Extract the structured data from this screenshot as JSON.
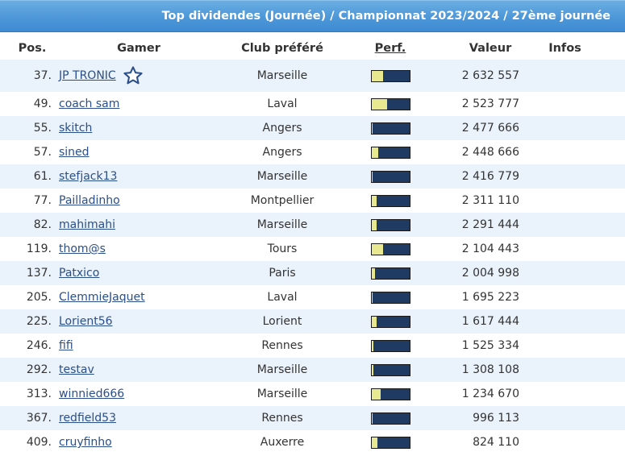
{
  "title": "Top dividendes (Journée) / Championnat 2023/2024 / 27ème journée",
  "headers": {
    "pos": "Pos.",
    "gamer": "Gamer",
    "club": "Club préféré",
    "perf": "Perf.",
    "value": "Valeur",
    "infos": "Infos"
  },
  "colors": {
    "header_bar": "#4d97d8",
    "row_alt": "#eaf2fb",
    "bar_bg": "#1f3a63",
    "bar_fill": "#e8e890",
    "link": "#2a4f8a"
  },
  "rows": [
    {
      "pos": "37.",
      "gamer": "JP TRONIC",
      "club": "Marseille",
      "perf": 0.3,
      "value": "2 632 557",
      "favorite_icon": "star-icon"
    },
    {
      "pos": "49.",
      "gamer": "coach sam",
      "club": "Laval",
      "perf": 0.42,
      "value": "2 523 777"
    },
    {
      "pos": "55.",
      "gamer": "skitch",
      "club": "Angers",
      "perf": 0.04,
      "value": "2 477 666"
    },
    {
      "pos": "57.",
      "gamer": "sined",
      "club": "Angers",
      "perf": 0.18,
      "value": "2 448 666"
    },
    {
      "pos": "61.",
      "gamer": "stefjack13",
      "club": "Marseille",
      "perf": 0.04,
      "value": "2 416 779"
    },
    {
      "pos": "77.",
      "gamer": "Pailladinho",
      "club": "Montpellier",
      "perf": 0.13,
      "value": "2 311 110"
    },
    {
      "pos": "82.",
      "gamer": "mahimahi",
      "club": "Marseille",
      "perf": 0.13,
      "value": "2 291 444"
    },
    {
      "pos": "119.",
      "gamer": "thom@s",
      "club": "Tours",
      "perf": 0.3,
      "value": "2 104 443"
    },
    {
      "pos": "137.",
      "gamer": "Patxico",
      "club": "Paris",
      "perf": 0.1,
      "value": "2 004 998"
    },
    {
      "pos": "205.",
      "gamer": "ClemmieJaquet",
      "club": "Laval",
      "perf": 0.04,
      "value": "1 695 223"
    },
    {
      "pos": "225.",
      "gamer": "Lorient56",
      "club": "Lorient",
      "perf": 0.13,
      "value": "1 617 444"
    },
    {
      "pos": "246.",
      "gamer": "fifi",
      "club": "Rennes",
      "perf": 0.06,
      "value": "1 525 334"
    },
    {
      "pos": "292.",
      "gamer": "testav",
      "club": "Marseille",
      "perf": 0.06,
      "value": "1 308 108"
    },
    {
      "pos": "313.",
      "gamer": "winnied666",
      "club": "Marseille",
      "perf": 0.25,
      "value": "1 234 670"
    },
    {
      "pos": "367.",
      "gamer": "redfield53",
      "club": "Rennes",
      "perf": 0.04,
      "value": "996 113"
    },
    {
      "pos": "409.",
      "gamer": "cruyfinho",
      "club": "Auxerre",
      "perf": 0.17,
      "value": "824 110"
    }
  ]
}
